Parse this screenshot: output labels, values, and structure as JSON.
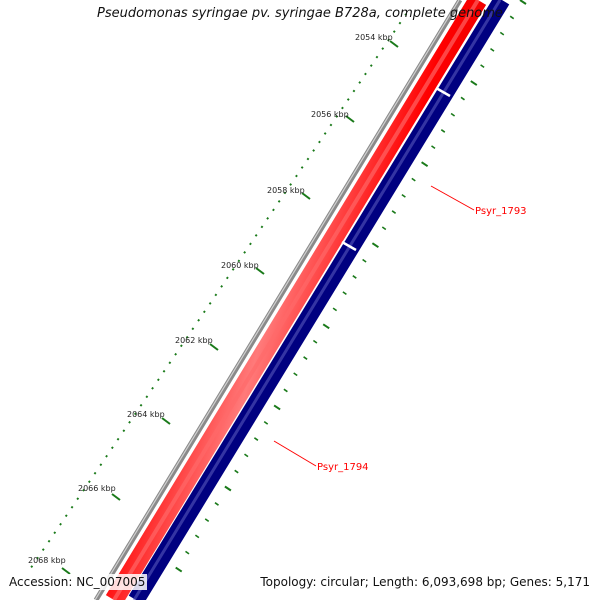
{
  "title": "Pseudomonas syringae pv. syringae B728a, complete genome",
  "accession": "Accession: NC_007005",
  "summary": "Topology: circular; Length: 6,093,698 bp; Genes: 5,171",
  "tick_labels": [
    "2054 kbp",
    "2056 kbp",
    "2058 kbp",
    "2060 kbp",
    "2062 kbp",
    "2064 kbp",
    "2066 kbp",
    "2068 kbp"
  ],
  "genes": [
    {
      "label": "Psyr_1793",
      "color": "#ff0000"
    },
    {
      "label": "Psyr_1794",
      "color": "#ff0000"
    }
  ],
  "colors": {
    "backbone": "#808080",
    "gene": "#ff0000",
    "gene_highlight": "#ffcccc",
    "outer_track": "#000080",
    "ticks": "#1a7a1a",
    "label": "#ff0000"
  }
}
